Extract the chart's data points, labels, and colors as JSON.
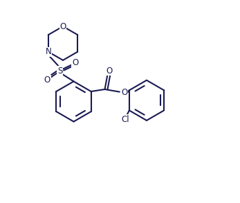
{
  "background_color": "#ffffff",
  "line_color": "#1a1a52",
  "atom_color": "#1a1a52",
  "line_width": 1.5,
  "figsize": [
    3.47,
    2.93
  ],
  "dpi": 100,
  "xlim": [
    0,
    10
  ],
  "ylim": [
    0,
    9.5
  ]
}
